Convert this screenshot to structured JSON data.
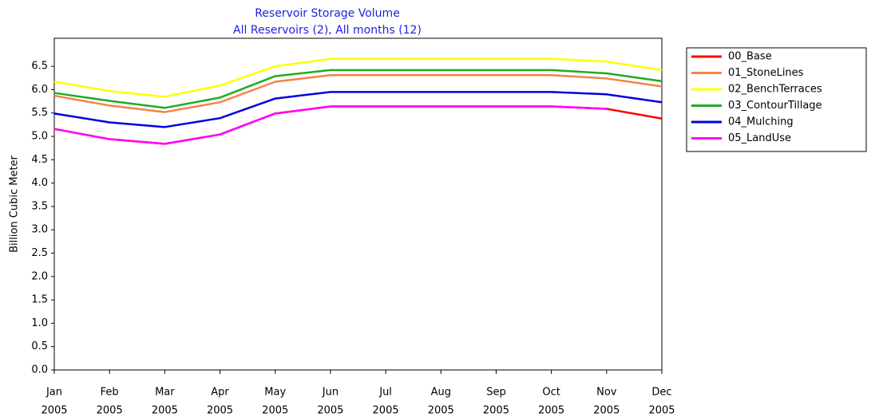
{
  "chart_data": {
    "type": "line",
    "title": "Reservoir Storage Volume",
    "subtitle": "All Reservoirs (2),  All months (12)",
    "y_label": "Billion Cubic Meter",
    "categories": [
      [
        "Jan",
        "2005"
      ],
      [
        "Feb",
        "2005"
      ],
      [
        "Mar",
        "2005"
      ],
      [
        "Apr",
        "2005"
      ],
      [
        "May",
        "2005"
      ],
      [
        "Jun",
        "2005"
      ],
      [
        "Jul",
        "2005"
      ],
      [
        "Aug",
        "2005"
      ],
      [
        "Sep",
        "2005"
      ],
      [
        "Oct",
        "2005"
      ],
      [
        "Nov",
        "2005"
      ],
      [
        "Dec",
        "2005"
      ]
    ],
    "ylim": [
      0,
      7.1
    ],
    "yticks": [
      {
        "value": 0,
        "label": "0.0"
      },
      0.5,
      {
        "value": 1,
        "label": "1.0"
      },
      1.5,
      {
        "value": 2,
        "label": "2.0"
      },
      2.5,
      {
        "value": 3,
        "label": "3.0"
      },
      3.5,
      {
        "value": 4,
        "label": "4.0"
      },
      4.5,
      {
        "value": 5,
        "label": "5.0"
      },
      5.5,
      {
        "value": 6,
        "label": "6.0"
      },
      6.5
    ],
    "grid": false,
    "legend": "right",
    "series": [
      {
        "name": "00_Base",
        "color": "#ff0000",
        "values": [
          5.16,
          4.94,
          4.84,
          5.04,
          5.49,
          5.64,
          5.64,
          5.64,
          5.64,
          5.64,
          5.59,
          5.38
        ]
      },
      {
        "name": "01_StoneLines",
        "color": "#f4834a",
        "values": [
          5.87,
          5.66,
          5.52,
          5.73,
          6.17,
          6.31,
          6.31,
          6.31,
          6.31,
          6.31,
          6.24,
          6.07
        ]
      },
      {
        "name": "02_BenchTerraces",
        "color": "#ffff00",
        "values": [
          6.17,
          5.97,
          5.85,
          6.09,
          6.5,
          6.66,
          6.66,
          6.66,
          6.66,
          6.66,
          6.6,
          6.42
        ]
      },
      {
        "name": "03_ContourTillage",
        "color": "#22aa22",
        "values": [
          5.93,
          5.76,
          5.61,
          5.83,
          6.29,
          6.42,
          6.42,
          6.42,
          6.42,
          6.42,
          6.35,
          6.18
        ]
      },
      {
        "name": "04_Mulching",
        "color": "#0000dd",
        "values": [
          5.49,
          5.3,
          5.2,
          5.39,
          5.81,
          5.95,
          5.95,
          5.95,
          5.95,
          5.95,
          5.9,
          5.73
        ]
      },
      {
        "name": "05_LandUse",
        "color": "#ff00ff",
        "values": [
          5.16,
          4.94,
          4.84,
          5.04,
          5.49,
          5.64,
          5.64,
          5.64,
          5.64,
          5.64,
          5.59,
          null
        ]
      }
    ]
  }
}
